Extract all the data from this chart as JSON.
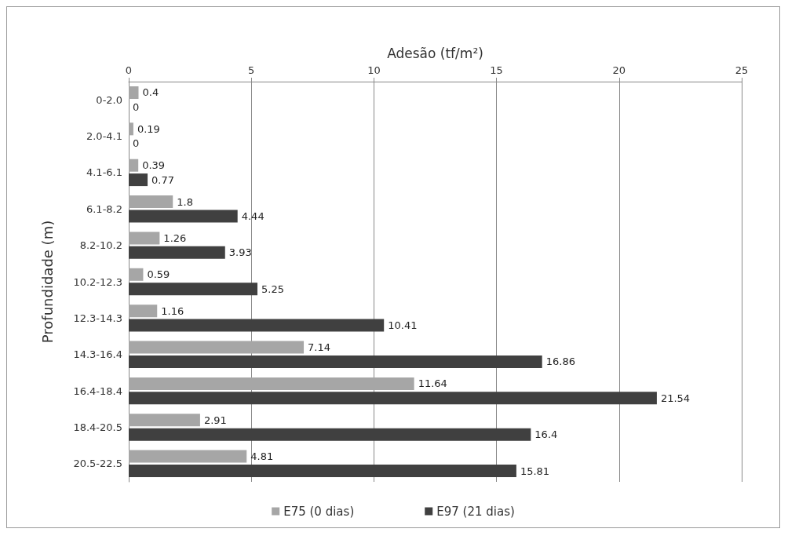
{
  "chart_data": {
    "type": "bar",
    "orientation": "horizontal",
    "xlabel": "Adesão (tf/m²)",
    "ylabel": "Profundidade (m)",
    "categories": [
      "0-2.0",
      "2.0-4.1",
      "4.1-6.1",
      "6.1-8.2",
      "8.2-10.2",
      "10.2-12.3",
      "12.3-14.3",
      "14.3-16.4",
      "16.4-18.4",
      "18.4-20.5",
      "20.5-22.5"
    ],
    "series": [
      {
        "name": "E75 (0 dias)",
        "color": "#a6a6a6",
        "values": [
          0.4,
          0.19,
          0.39,
          1.8,
          1.26,
          0.59,
          1.16,
          7.14,
          11.64,
          2.91,
          4.81
        ]
      },
      {
        "name": "E97 (21 dias)",
        "color": "#404040",
        "values": [
          0,
          0,
          0.77,
          4.44,
          3.93,
          5.25,
          10.41,
          16.86,
          21.54,
          16.4,
          15.81
        ]
      }
    ],
    "xlim": [
      0,
      25
    ],
    "xticks": [
      0,
      5,
      10,
      15,
      20,
      25
    ],
    "grid": "x",
    "legend": "bottom",
    "data_labels": true
  }
}
